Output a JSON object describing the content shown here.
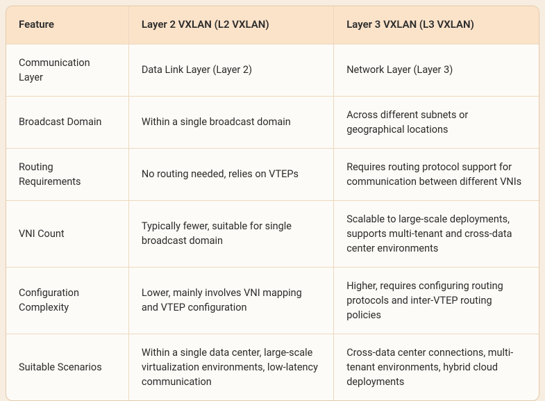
{
  "table": {
    "columns": [
      "Feature",
      "Layer 2 VXLAN (L2 VXLAN)",
      "Layer 3 VXLAN (L3 VXLAN)"
    ],
    "rows": [
      [
        "Communication Layer",
        "Data Link Layer (Layer 2)",
        "Network Layer (Layer 3)"
      ],
      [
        "Broadcast Domain",
        "Within a single broadcast domain",
        "Across different subnets or geographical locations"
      ],
      [
        "Routing Requirements",
        "No routing needed, relies on VTEPs",
        "Requires routing protocol support for communication between different VNIs"
      ],
      [
        "VNI Count",
        "Typically fewer, suitable for single broadcast domain",
        "Scalable to large-scale deployments, supports multi-tenant and cross-data center environments"
      ],
      [
        "Configuration Complexity",
        "Lower, mainly involves VNI mapping and VTEP configuration",
        "Higher, requires configuring routing protocols and inter-VTEP routing policies"
      ],
      [
        "Suitable Scenarios",
        "Within a single data center, large-scale virtualization environments, low-latency communication",
        "Cross-data center connections, multi-tenant environments, hybrid cloud deployments"
      ]
    ],
    "column_widths_pct": [
      23,
      38.5,
      38.5
    ],
    "header_bg": "#fbe3ca",
    "body_bg": "#fdfbf7",
    "border_color": "#ecd8bf",
    "outer_border_color": "#e6c9a8",
    "page_bg": "#f7ede1",
    "text_color": "#2b2b2b",
    "font_size_body": 14.5,
    "font_size_header": 15,
    "border_radius": 10
  }
}
